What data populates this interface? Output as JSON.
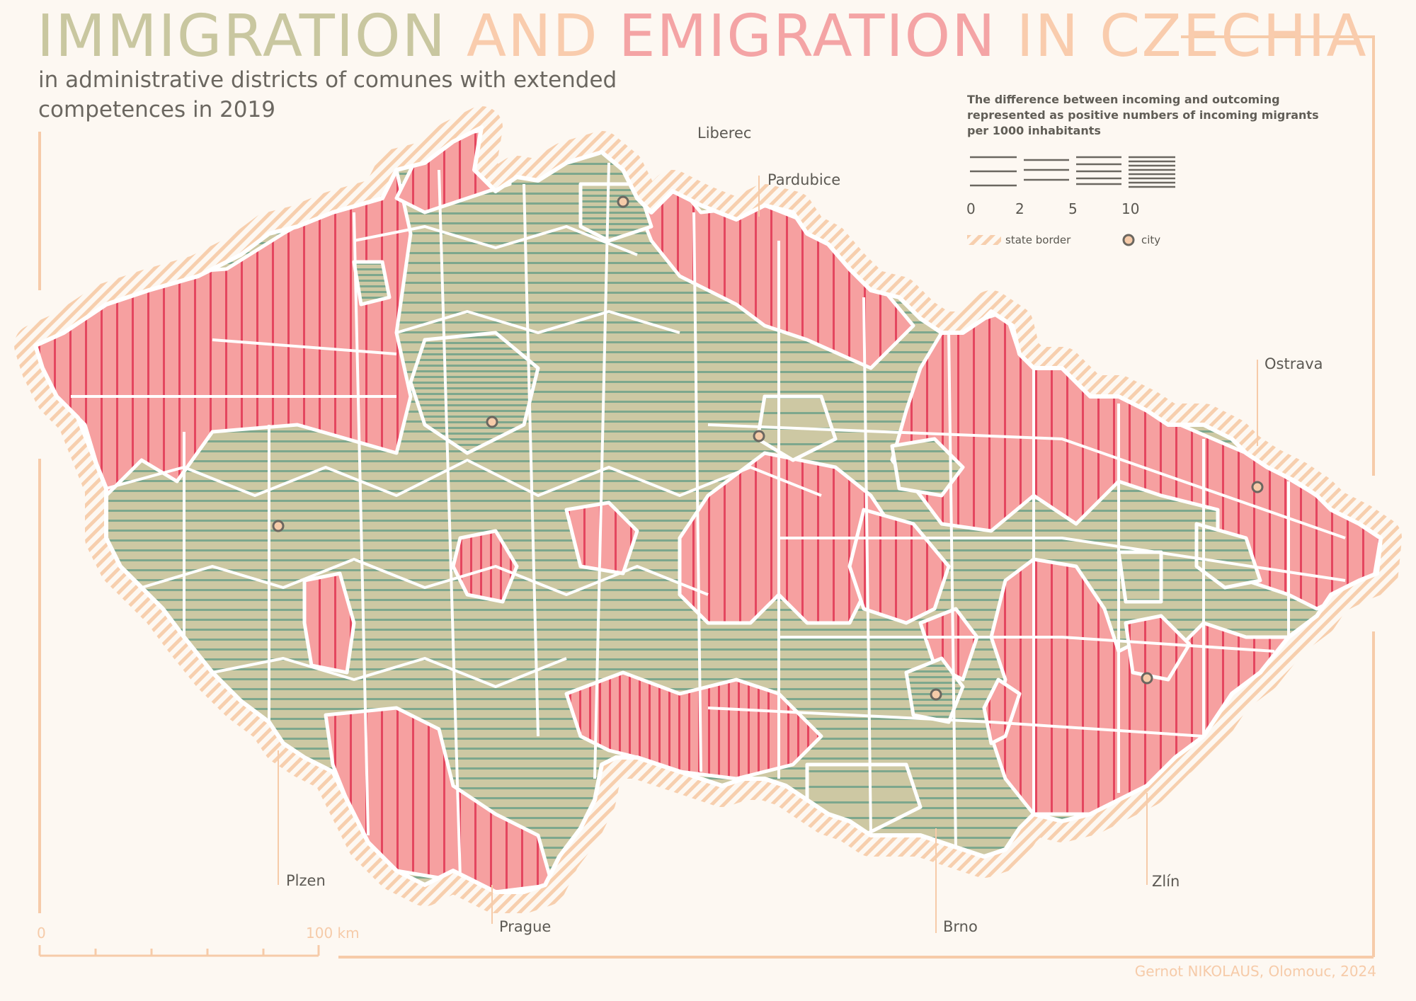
{
  "title": {
    "word1": "IMMIGRATION",
    "word2": "AND",
    "word3": "EMIGRATION",
    "word4": "IN CZECHIA"
  },
  "subtitle": "in administrative districts of comunes with extended competences in 2019",
  "legend": {
    "title": "The difference between incoming and outcoming represented as positive numbers of incoming migrants per 1000 inhabitants",
    "scale_values": [
      "0",
      "2",
      "5",
      "10"
    ],
    "state_border_label": "state border",
    "city_label": "city"
  },
  "cities": [
    {
      "name": "Liberec"
    },
    {
      "name": "Pardubice"
    },
    {
      "name": "Ostrava"
    },
    {
      "name": "Plzen"
    },
    {
      "name": "Prague"
    },
    {
      "name": "Brno"
    },
    {
      "name": "Zlín"
    }
  ],
  "scale_bar": {
    "start": "0",
    "end": "100 km"
  },
  "credit": "Gernot NIKOLAUS, Olomouc, 2024",
  "colors": {
    "immigration_green": "#cdc8a3",
    "immigration_stripe": "#7da78d",
    "emigration_pink": "#f6a0a0",
    "emigration_stripe": "#e4465f",
    "title_green": "#c9c7a0",
    "title_peach": "#f9ccad",
    "title_pink": "#f4a4a5",
    "frame": "#f6cba9",
    "border": "#ffffff"
  }
}
